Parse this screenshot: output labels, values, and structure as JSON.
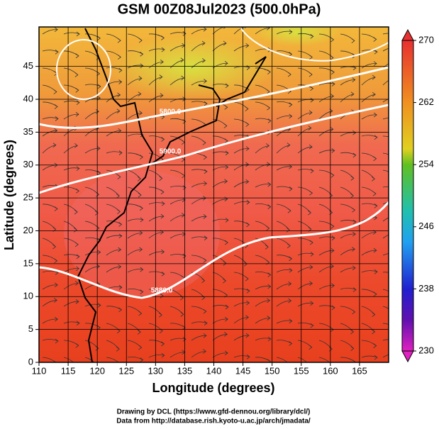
{
  "chart_data": {
    "type": "heatmap",
    "title": "GSM 00Z08Jul2023 (500.0hPa)",
    "xlabel": "Longitude (degrees)",
    "ylabel": "Latitude  (degrees)",
    "xlim": [
      110,
      170
    ],
    "ylim": [
      0,
      51
    ],
    "xticks": [
      110,
      115,
      120,
      125,
      130,
      135,
      140,
      145,
      150,
      155,
      160,
      165
    ],
    "yticks": [
      0,
      5,
      10,
      15,
      20,
      25,
      30,
      35,
      40,
      45
    ],
    "grid": true,
    "colorbar": {
      "lim": [
        230,
        270
      ],
      "ticks": [
        230,
        238,
        246,
        254,
        262,
        270
      ]
    },
    "contour_labels": [
      "5800.0",
      "5900.0",
      "5880.0"
    ],
    "credits": [
      "Drawing by DCL (https://www.gfd-dennou.org/library/dcl/)",
      "Data from http://database.rish.kyoto-u.ac.jp/arch/jmadata/"
    ]
  }
}
